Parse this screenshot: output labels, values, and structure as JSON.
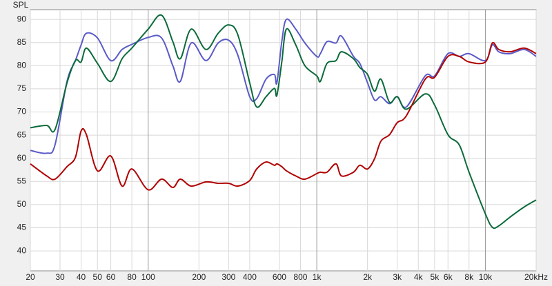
{
  "chart_data": {
    "type": "line",
    "y_label": "SPL",
    "log_x": true,
    "grid": true,
    "xlim": [
      20,
      20000
    ],
    "ylim": [
      35.7,
      92.1
    ],
    "xticks": [
      20,
      30,
      40,
      50,
      60,
      80,
      100,
      200,
      300,
      400,
      600,
      800,
      {
        "value": 1000,
        "label": "1k"
      },
      {
        "value": 2000,
        "label": "2k"
      },
      {
        "value": 3000,
        "label": "3k"
      },
      {
        "value": 4000,
        "label": "4k"
      },
      {
        "value": 5000,
        "label": "5k"
      },
      {
        "value": 6000,
        "label": "6k"
      },
      {
        "value": 8000,
        "label": "8k"
      },
      {
        "value": 10000,
        "label": "10k"
      },
      {
        "value": 20000,
        "label": "20kHz"
      }
    ],
    "yticks": [
      40,
      45,
      50,
      55,
      60,
      65,
      70,
      75,
      80,
      85,
      90
    ],
    "x": [
      20,
      25,
      28,
      33,
      37,
      40,
      43,
      50,
      60,
      70,
      80,
      100,
      120,
      140,
      155,
      180,
      220,
      260,
      300,
      340,
      400,
      440,
      500,
      560,
      580,
      620,
      660,
      750,
      850,
      1000,
      1050,
      1150,
      1300,
      1400,
      1650,
      1800,
      2000,
      2200,
      2400,
      2700,
      3000,
      3400,
      4400,
      5000,
      6000,
      7000,
      8000,
      10000,
      11000,
      12000,
      14000,
      17000,
      20000
    ],
    "series": [
      {
        "color": "#5a5ac8",
        "values": [
          61.7,
          61.1,
          62.9,
          76.6,
          81.1,
          84.5,
          87.0,
          86.0,
          81.1,
          83.5,
          84.6,
          86.1,
          86.0,
          80.0,
          76.6,
          84.9,
          81.1,
          84.9,
          85.5,
          82.3,
          73.3,
          72.9,
          77.1,
          78.1,
          76.3,
          85.2,
          90.0,
          87.9,
          84.9,
          82.0,
          82.6,
          85.2,
          84.9,
          86.4,
          82.0,
          80.5,
          76.3,
          72.6,
          73.3,
          71.8,
          73.3,
          71.1,
          77.8,
          77.8,
          82.6,
          82.0,
          82.6,
          81.1,
          84.5,
          83.0,
          82.6,
          83.5,
          82.0
        ]
      },
      {
        "color": "#0a6a3a",
        "values": [
          66.6,
          67.1,
          66.2,
          76.3,
          81.1,
          80.8,
          83.8,
          80.5,
          76.6,
          81.5,
          83.8,
          87.9,
          90.9,
          85.2,
          81.5,
          87.9,
          83.5,
          87.0,
          88.8,
          86.7,
          76.3,
          71.1,
          73.3,
          75.1,
          73.6,
          80.8,
          87.9,
          84.5,
          80.0,
          77.8,
          76.6,
          80.5,
          81.1,
          83.0,
          81.5,
          79.6,
          78.1,
          74.5,
          77.1,
          72.1,
          73.3,
          70.6,
          73.9,
          71.5,
          65.1,
          62.9,
          57.0,
          48.0,
          45.1,
          45.4,
          47.3,
          49.5,
          51.0
        ]
      },
      {
        "color": "#b00000",
        "values": [
          58.8,
          56.2,
          55.5,
          58.2,
          60.2,
          65.9,
          65.1,
          57.3,
          60.5,
          54.0,
          57.7,
          53.2,
          55.5,
          53.7,
          55.5,
          54.0,
          54.9,
          54.6,
          54.6,
          54.0,
          55.2,
          57.7,
          59.2,
          58.5,
          58.8,
          58.2,
          57.3,
          56.2,
          55.5,
          56.7,
          57.0,
          57.0,
          58.8,
          56.2,
          57.0,
          58.5,
          57.7,
          59.9,
          63.7,
          65.1,
          67.7,
          69.2,
          77.1,
          77.5,
          82.0,
          82.0,
          80.8,
          80.8,
          84.9,
          83.5,
          83.0,
          83.8,
          82.6
        ]
      }
    ]
  }
}
